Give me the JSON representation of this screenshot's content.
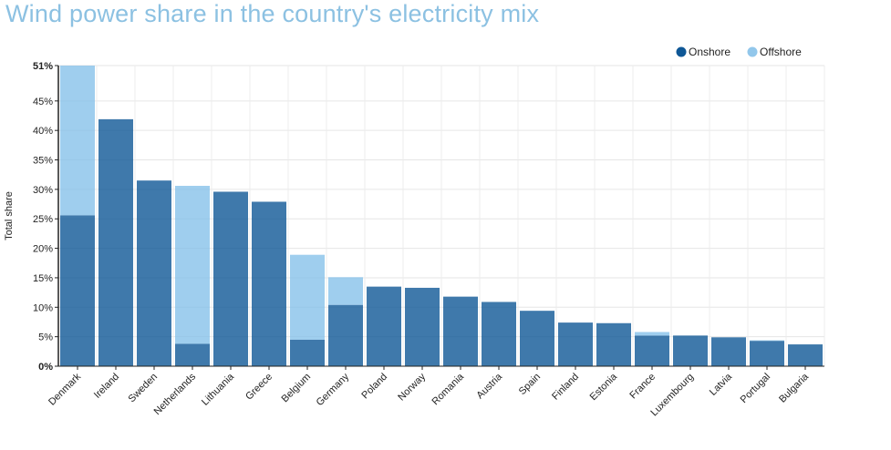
{
  "chart_data": {
    "type": "bar",
    "stacked": true,
    "title": "Wind power share in the country's electricity mix",
    "xlabel": "",
    "ylabel": "Total share",
    "ylim": [
      0,
      51
    ],
    "yticks": [
      "0%",
      "5%",
      "10%",
      "15%",
      "20%",
      "25%",
      "30%",
      "35%",
      "40%",
      "45%",
      "51%"
    ],
    "ytick_values": [
      0,
      5,
      10,
      15,
      20,
      25,
      30,
      35,
      40,
      45,
      51
    ],
    "grid": true,
    "legend_position": "top-right",
    "categories": [
      "Denmark",
      "Ireland",
      "Sweden",
      "Netherlands",
      "Lithuania",
      "Greece",
      "Belgium",
      "Germany",
      "Poland",
      "Norway",
      "Romania",
      "Austria",
      "Spain",
      "Finland",
      "Estonia",
      "France",
      "Luxembourg",
      "Latvia",
      "Portugal",
      "Bulgaria"
    ],
    "series": [
      {
        "name": "Onshore",
        "color": "#0f5796",
        "values": [
          25.6,
          41.9,
          31.5,
          3.8,
          29.6,
          27.9,
          4.5,
          10.4,
          13.5,
          13.3,
          11.8,
          10.9,
          9.4,
          7.4,
          7.3,
          5.2,
          5.2,
          4.9,
          4.3,
          3.7
        ]
      },
      {
        "name": "Offshore",
        "color": "#7fbde8",
        "values": [
          25.4,
          0,
          0,
          26.8,
          0,
          0,
          14.4,
          4.7,
          0,
          0,
          0,
          0,
          0,
          0,
          0,
          0.6,
          0,
          0,
          0.1,
          0
        ]
      }
    ]
  }
}
